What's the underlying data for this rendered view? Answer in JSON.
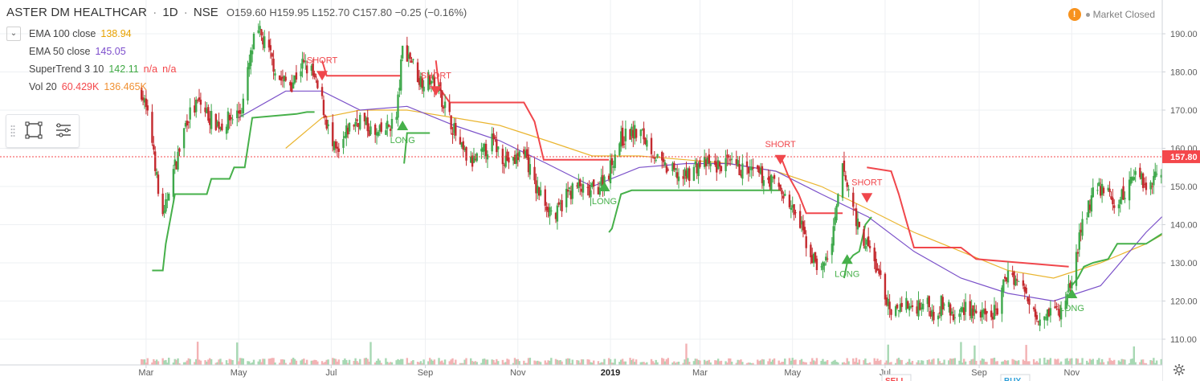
{
  "header": {
    "symbol": "ASTER DM HEALTHCAR",
    "interval": "1D",
    "exchange": "NSE",
    "sep": "·",
    "open": "O159.60",
    "high": "H159.95",
    "low": "L152.70",
    "close": "C157.80",
    "change": "−0.25 (−0.16%)"
  },
  "legend": [
    {
      "name": "EMA 100 close",
      "values": [
        "138.94"
      ],
      "color": "#e8a200"
    },
    {
      "name": "EMA 50 close",
      "values": [
        "145.05"
      ],
      "color": "#7c4dcc"
    },
    {
      "name": "SuperTrend 3 10",
      "values": [
        "142.11",
        "n/a",
        "n/a"
      ],
      "colors": [
        "#3fa844",
        "#f4474b",
        "#f4474b"
      ]
    },
    {
      "name": "Vol 20",
      "values": [
        "60.429K",
        "136.465K"
      ],
      "colors": [
        "#f4474b",
        "#f09032"
      ]
    }
  ],
  "status": {
    "icon": "warning-icon",
    "text": "Market Closed"
  },
  "chart_data": {
    "type": "candlestick",
    "price_axis": {
      "ticks": [
        110,
        120,
        130,
        140,
        150,
        160,
        170,
        180,
        190
      ],
      "ylim": [
        105,
        195
      ]
    },
    "time_axis": {
      "labels": [
        "Mar",
        "May",
        "Jul",
        "Sep",
        "Nov",
        "2019",
        "Mar",
        "May",
        "Jul",
        "Sep",
        "Nov"
      ]
    },
    "last_price": {
      "value": 157.8,
      "label": "157.80",
      "color": "#f4474b"
    },
    "price_path": [
      [
        "2018-02-26",
        175
      ],
      [
        "2018-03-01",
        170
      ],
      [
        "2018-03-06",
        160
      ],
      [
        "2018-03-09",
        148
      ],
      [
        "2018-03-13",
        142
      ],
      [
        "2018-03-16",
        150
      ],
      [
        "2018-03-22",
        158
      ],
      [
        "2018-03-28",
        168
      ],
      [
        "2018-04-05",
        172
      ],
      [
        "2018-04-12",
        168
      ],
      [
        "2018-04-19",
        166
      ],
      [
        "2018-04-26",
        168
      ],
      [
        "2018-05-03",
        170
      ],
      [
        "2018-05-08",
        182
      ],
      [
        "2018-05-11",
        188
      ],
      [
        "2018-05-15",
        190
      ],
      [
        "2018-05-21",
        185
      ],
      [
        "2018-05-28",
        178
      ],
      [
        "2018-06-05",
        177
      ],
      [
        "2018-06-12",
        182
      ],
      [
        "2018-06-18",
        180
      ],
      [
        "2018-06-25",
        172
      ],
      [
        "2018-07-02",
        160
      ],
      [
        "2018-07-06",
        158
      ],
      [
        "2018-07-12",
        165
      ],
      [
        "2018-07-20",
        168
      ],
      [
        "2018-07-30",
        163
      ],
      [
        "2018-08-06",
        165
      ],
      [
        "2018-08-13",
        168
      ],
      [
        "2018-08-17",
        186
      ],
      [
        "2018-08-22",
        184
      ],
      [
        "2018-08-28",
        178
      ],
      [
        "2018-09-04",
        178
      ],
      [
        "2018-09-10",
        175
      ],
      [
        "2018-09-17",
        168
      ],
      [
        "2018-09-24",
        160
      ],
      [
        "2018-10-01",
        156
      ],
      [
        "2018-10-08",
        158
      ],
      [
        "2018-10-15",
        162
      ],
      [
        "2018-10-22",
        158
      ],
      [
        "2018-10-29",
        156
      ],
      [
        "2018-11-05",
        160
      ],
      [
        "2018-11-12",
        150
      ],
      [
        "2018-11-19",
        146
      ],
      [
        "2018-11-26",
        142
      ],
      [
        "2018-12-03",
        148
      ],
      [
        "2018-12-10",
        150
      ],
      [
        "2018-12-17",
        148
      ],
      [
        "2018-12-24",
        150
      ],
      [
        "2018-12-31",
        154
      ],
      [
        "2019-01-07",
        162
      ],
      [
        "2019-01-14",
        164
      ],
      [
        "2019-01-21",
        164
      ],
      [
        "2019-01-28",
        160
      ],
      [
        "2019-02-04",
        155
      ],
      [
        "2019-02-11",
        154
      ],
      [
        "2019-02-18",
        152
      ],
      [
        "2019-02-25",
        155
      ],
      [
        "2019-03-04",
        156
      ],
      [
        "2019-03-11",
        155
      ],
      [
        "2019-03-18",
        156
      ],
      [
        "2019-03-25",
        155
      ],
      [
        "2019-04-01",
        154
      ],
      [
        "2019-04-08",
        153
      ],
      [
        "2019-04-15",
        152
      ],
      [
        "2019-04-22",
        150
      ],
      [
        "2019-04-29",
        145
      ],
      [
        "2019-05-06",
        140
      ],
      [
        "2019-05-13",
        132
      ],
      [
        "2019-05-20",
        128
      ],
      [
        "2019-05-27",
        135
      ],
      [
        "2019-06-03",
        155
      ],
      [
        "2019-06-06",
        150
      ],
      [
        "2019-06-10",
        145
      ],
      [
        "2019-06-14",
        138
      ],
      [
        "2019-06-19",
        135
      ],
      [
        "2019-06-24",
        130
      ],
      [
        "2019-07-01",
        122
      ],
      [
        "2019-07-05",
        115
      ],
      [
        "2019-07-12",
        120
      ],
      [
        "2019-07-19",
        118
      ],
      [
        "2019-07-26",
        120
      ],
      [
        "2019-08-02",
        117
      ],
      [
        "2019-08-09",
        120
      ],
      [
        "2019-08-16",
        115
      ],
      [
        "2019-08-23",
        119
      ],
      [
        "2019-08-30",
        117
      ],
      [
        "2019-09-06",
        115
      ],
      [
        "2019-09-13",
        118
      ],
      [
        "2019-09-20",
        128
      ],
      [
        "2019-09-27",
        125
      ],
      [
        "2019-10-04",
        120
      ],
      [
        "2019-10-11",
        116
      ],
      [
        "2019-10-18",
        118
      ],
      [
        "2019-10-25",
        117
      ],
      [
        "2019-11-01",
        126
      ],
      [
        "2019-11-08",
        140
      ],
      [
        "2019-11-15",
        148
      ],
      [
        "2019-11-22",
        150
      ],
      [
        "2019-11-29",
        145
      ],
      [
        "2019-12-06",
        148
      ],
      [
        "2019-12-13",
        155
      ],
      [
        "2019-12-20",
        150
      ],
      [
        "2019-12-27",
        153
      ],
      [
        "2020-01-03",
        158
      ],
      [
        "2020-01-07",
        157.8
      ]
    ],
    "ema100": [
      [
        "2018-06-01",
        160
      ],
      [
        "2018-06-25",
        168
      ],
      [
        "2018-07-20",
        170
      ],
      [
        "2018-08-20",
        170
      ],
      [
        "2018-09-20",
        168
      ],
      [
        "2018-10-20",
        166
      ],
      [
        "2018-11-20",
        162
      ],
      [
        "2018-12-20",
        158
      ],
      [
        "2019-01-20",
        158
      ],
      [
        "2019-02-20",
        157
      ],
      [
        "2019-03-20",
        156
      ],
      [
        "2019-04-20",
        154
      ],
      [
        "2019-05-20",
        150
      ],
      [
        "2019-06-20",
        144
      ],
      [
        "2019-07-20",
        138
      ],
      [
        "2019-08-20",
        133
      ],
      [
        "2019-09-20",
        128
      ],
      [
        "2019-10-20",
        126
      ],
      [
        "2019-11-20",
        130
      ],
      [
        "2019-12-20",
        135
      ],
      [
        "2020-01-07",
        139
      ]
    ],
    "ema50": [
      [
        "2018-05-01",
        168
      ],
      [
        "2018-06-01",
        175
      ],
      [
        "2018-06-25",
        175
      ],
      [
        "2018-07-20",
        170
      ],
      [
        "2018-08-20",
        171
      ],
      [
        "2018-09-20",
        166
      ],
      [
        "2018-10-20",
        162
      ],
      [
        "2018-11-20",
        156
      ],
      [
        "2018-12-20",
        150
      ],
      [
        "2019-01-20",
        155
      ],
      [
        "2019-02-20",
        156
      ],
      [
        "2019-03-20",
        156
      ],
      [
        "2019-04-20",
        154
      ],
      [
        "2019-05-20",
        148
      ],
      [
        "2019-06-20",
        142
      ],
      [
        "2019-07-20",
        133
      ],
      [
        "2019-08-20",
        126
      ],
      [
        "2019-09-20",
        122
      ],
      [
        "2019-10-20",
        120
      ],
      [
        "2019-11-20",
        124
      ],
      [
        "2019-12-20",
        138
      ],
      [
        "2020-01-07",
        145
      ]
    ],
    "supertrend_up": [
      [
        [
          "2018-03-05",
          128
        ],
        [
          "2018-03-12",
          128
        ],
        [
          "2018-03-14",
          135
        ],
        [
          "2018-03-20",
          148
        ],
        [
          "2018-04-10",
          148
        ],
        [
          "2018-04-13",
          152
        ],
        [
          "2018-04-25",
          152
        ],
        [
          "2018-04-28",
          155
        ],
        [
          "2018-05-05",
          155
        ],
        [
          "2018-05-10",
          168
        ],
        [
          "2018-06-08",
          169
        ],
        [
          "2018-06-15",
          169.5
        ],
        [
          "2018-06-20",
          169.5
        ]
      ],
      [
        [
          "2018-08-18",
          156
        ],
        [
          "2018-08-20",
          164
        ],
        [
          "2018-09-04",
          164
        ]
      ],
      [
        [
          "2018-12-31",
          138
        ],
        [
          "2019-01-02",
          139
        ],
        [
          "2019-01-08",
          148
        ],
        [
          "2019-01-15",
          149
        ],
        [
          "2019-04-23",
          149
        ]
      ],
      [
        [
          "2019-06-04",
          126
        ],
        [
          "2019-06-06",
          130
        ],
        [
          "2019-06-10",
          132
        ],
        [
          "2019-06-14",
          133
        ],
        [
          "2019-06-18",
          140
        ],
        [
          "2019-06-22",
          142
        ]
      ],
      [
        [
          "2019-11-01",
          124
        ],
        [
          "2019-11-05",
          126
        ],
        [
          "2019-11-09",
          129
        ],
        [
          "2019-11-15",
          130
        ],
        [
          "2019-11-25",
          131
        ],
        [
          "2019-12-01",
          135
        ],
        [
          "2019-12-20",
          135
        ],
        [
          "2020-01-01",
          138
        ],
        [
          "2020-01-07",
          142
        ]
      ]
    ],
    "supertrend_down": [
      [
        [
          "2018-06-25",
          183
        ],
        [
          "2018-06-28",
          179
        ],
        [
          "2018-08-16",
          179
        ]
      ],
      [
        [
          "2018-09-08",
          183
        ],
        [
          "2018-09-10",
          176
        ],
        [
          "2018-09-17",
          172
        ],
        [
          "2018-11-05",
          172
        ],
        [
          "2018-11-12",
          167
        ],
        [
          "2018-11-18",
          157
        ],
        [
          "2018-12-31",
          157
        ]
      ],
      [
        [
          "2019-04-23",
          158
        ],
        [
          "2019-04-28",
          153
        ],
        [
          "2019-05-05",
          148
        ],
        [
          "2019-05-10",
          143
        ],
        [
          "2019-06-03",
          143
        ]
      ],
      [
        [
          "2019-06-19",
          155
        ],
        [
          "2019-07-05",
          154
        ],
        [
          "2019-07-10",
          148
        ],
        [
          "2019-07-15",
          141
        ],
        [
          "2019-07-20",
          134
        ],
        [
          "2019-08-20",
          134
        ],
        [
          "2019-08-30",
          131
        ],
        [
          "2019-10-30",
          129
        ]
      ]
    ],
    "signals": [
      {
        "type": "short",
        "label": "SHORT",
        "date": "2018-06-25",
        "price": 179
      },
      {
        "type": "long",
        "label": "LONG",
        "date": "2018-08-17",
        "price": 166
      },
      {
        "type": "short",
        "label": "SHORT",
        "date": "2018-09-08",
        "price": 175
      },
      {
        "type": "long",
        "label": "LONG",
        "date": "2018-12-28",
        "price": 150
      },
      {
        "type": "short",
        "label": "SHORT",
        "date": "2019-04-23",
        "price": 157
      },
      {
        "type": "long",
        "label": "LONG",
        "date": "2019-06-06",
        "price": 131
      },
      {
        "type": "short",
        "label": "SHORT",
        "date": "2019-06-19",
        "price": 147
      },
      {
        "type": "long",
        "label": "LONG",
        "date": "2019-11-01",
        "price": 122
      }
    ],
    "bottom_badges": [
      "SELL",
      "BUY"
    ],
    "colors": {
      "up": "#3ea84b",
      "down": "#c42a2f",
      "ema100": "#eab530",
      "ema50": "#7b51c9",
      "st_up": "#46b04a",
      "st_down": "#f0474c",
      "grid": "#eef0f3",
      "axis_text": "#5d5d5d"
    }
  }
}
